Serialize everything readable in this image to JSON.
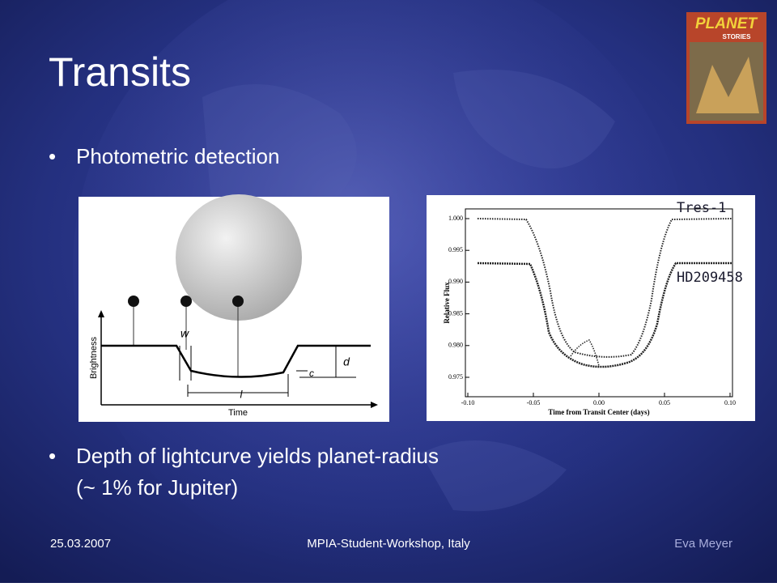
{
  "title": "Transits",
  "bullets": [
    {
      "lines": [
        "Photometric detection"
      ]
    },
    {
      "lines": [
        "Depth of lightcurve yields planet-radius",
        "(~ 1% for Jupiter)"
      ]
    }
  ],
  "diagram": {
    "y_label": "Brightness",
    "x_label": "Time",
    "labels": [
      "w",
      "d",
      "c",
      "l"
    ]
  },
  "plot": {
    "y_label": "Relative Flux",
    "x_label": "Time from Transit Center (days)",
    "yticks": [
      "1.000",
      "0.995",
      "0.990",
      "0.985",
      "0.980",
      "0.975"
    ],
    "xticks": [
      "-0.10",
      "-0.05",
      "0.00",
      "0.05",
      "0.10"
    ],
    "series_labels": [
      "Tres-1",
      "HD209458"
    ]
  },
  "magazine": {
    "title": "PLANET",
    "subtitle": "STORIES"
  },
  "footer": {
    "date": "25.03.2007",
    "event": "MPIA-Student-Workshop, Italy",
    "author": "Eva Meyer"
  }
}
